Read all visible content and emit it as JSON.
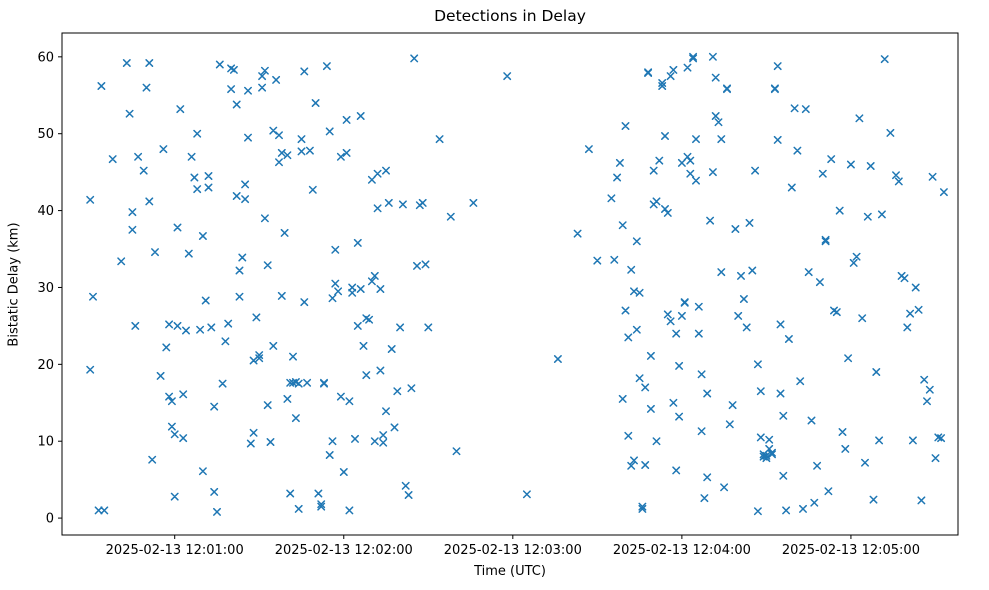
{
  "chart_data": {
    "type": "scatter",
    "title": "Detections in Delay",
    "xlabel": "Time (UTC)",
    "ylabel": "Bistatic Delay (km)",
    "marker": "x",
    "marker_color": "#1f77b4",
    "grid": false,
    "x_unit": "seconds after 2025-02-13 12:00:00 UTC",
    "xlim": [
      20,
      338
    ],
    "ylim": [
      -2.2,
      63.1
    ],
    "x_ticks": [
      {
        "t": 60,
        "label": "2025-02-13 12:01:00"
      },
      {
        "t": 120,
        "label": "2025-02-13 12:02:00"
      },
      {
        "t": 180,
        "label": "2025-02-13 12:03:00"
      },
      {
        "t": 240,
        "label": "2025-02-13 12:04:00"
      },
      {
        "t": 300,
        "label": "2025-02-13 12:05:00"
      }
    ],
    "y_ticks": [
      0,
      10,
      20,
      30,
      40,
      50,
      60
    ],
    "points": [
      [
        30,
        19.3
      ],
      [
        31,
        28.8
      ],
      [
        30,
        41.4
      ],
      [
        33,
        1.0
      ],
      [
        35,
        1.0
      ],
      [
        34,
        56.2
      ],
      [
        38,
        46.7
      ],
      [
        41,
        33.4
      ],
      [
        43,
        59.2
      ],
      [
        44,
        52.6
      ],
      [
        45,
        39.8
      ],
      [
        45,
        37.5
      ],
      [
        46,
        25.0
      ],
      [
        47,
        47.0
      ],
      [
        49,
        45.2
      ],
      [
        50,
        56.0
      ],
      [
        51,
        59.2
      ],
      [
        51,
        41.2
      ],
      [
        52,
        7.6
      ],
      [
        53,
        34.6
      ],
      [
        55,
        18.5
      ],
      [
        56,
        48.0
      ],
      [
        57,
        22.2
      ],
      [
        58,
        15.8
      ],
      [
        58,
        25.2
      ],
      [
        59,
        15.2
      ],
      [
        59,
        11.9
      ],
      [
        60,
        10.9
      ],
      [
        60,
        2.8
      ],
      [
        61,
        25.0
      ],
      [
        61,
        37.8
      ],
      [
        62,
        53.2
      ],
      [
        63,
        10.4
      ],
      [
        63,
        16.1
      ],
      [
        64,
        24.4
      ],
      [
        65,
        34.4
      ],
      [
        66,
        47.0
      ],
      [
        67,
        44.3
      ],
      [
        68,
        42.8
      ],
      [
        68,
        50.0
      ],
      [
        69,
        24.5
      ],
      [
        70,
        6.1
      ],
      [
        70,
        36.7
      ],
      [
        71,
        28.3
      ],
      [
        72,
        43.0
      ],
      [
        72,
        44.5
      ],
      [
        73,
        24.8
      ],
      [
        74,
        14.5
      ],
      [
        74,
        3.4
      ],
      [
        75,
        0.8
      ],
      [
        76,
        59.0
      ],
      [
        77,
        17.5
      ],
      [
        78,
        23.0
      ],
      [
        79,
        25.3
      ],
      [
        80,
        58.5
      ],
      [
        80,
        55.8
      ],
      [
        81,
        58.3
      ],
      [
        82,
        53.8
      ],
      [
        82,
        41.9
      ],
      [
        83,
        32.2
      ],
      [
        83,
        28.8
      ],
      [
        84,
        33.9
      ],
      [
        85,
        43.4
      ],
      [
        85,
        41.5
      ],
      [
        86,
        49.5
      ],
      [
        86,
        55.6
      ],
      [
        87,
        9.7
      ],
      [
        88,
        11.1
      ],
      [
        88,
        20.5
      ],
      [
        89,
        26.1
      ],
      [
        90,
        21.2
      ],
      [
        90,
        20.8
      ],
      [
        91,
        56.0
      ],
      [
        91,
        57.5
      ],
      [
        92,
        58.2
      ],
      [
        92,
        39.0
      ],
      [
        93,
        32.9
      ],
      [
        93,
        14.7
      ],
      [
        94,
        9.9
      ],
      [
        95,
        22.4
      ],
      [
        95,
        50.4
      ],
      [
        96,
        57.0
      ],
      [
        97,
        46.3
      ],
      [
        97,
        49.8
      ],
      [
        98,
        47.5
      ],
      [
        98,
        28.9
      ],
      [
        99,
        37.1
      ],
      [
        100,
        47.2
      ],
      [
        100,
        15.5
      ],
      [
        101,
        17.6
      ],
      [
        101,
        3.2
      ],
      [
        102,
        21.0
      ],
      [
        102,
        17.6
      ],
      [
        103,
        17.7
      ],
      [
        103,
        13.0
      ],
      [
        104,
        1.2
      ],
      [
        104,
        17.5
      ],
      [
        105,
        47.7
      ],
      [
        105,
        49.3
      ],
      [
        106,
        58.1
      ],
      [
        106,
        28.1
      ],
      [
        107,
        17.6
      ],
      [
        108,
        47.8
      ],
      [
        109,
        42.7
      ],
      [
        110,
        54.0
      ],
      [
        111,
        3.2
      ],
      [
        112,
        1.8
      ],
      [
        112,
        1.5
      ],
      [
        113,
        17.5
      ],
      [
        113,
        17.6
      ],
      [
        114,
        58.8
      ],
      [
        115,
        50.3
      ],
      [
        115,
        8.2
      ],
      [
        116,
        10.0
      ],
      [
        116,
        28.6
      ],
      [
        117,
        30.5
      ],
      [
        117,
        34.9
      ],
      [
        118,
        29.5
      ],
      [
        119,
        47.0
      ],
      [
        119,
        15.8
      ],
      [
        120,
        6.0
      ],
      [
        121,
        47.5
      ],
      [
        121,
        51.8
      ],
      [
        122,
        15.2
      ],
      [
        122,
        1.0
      ],
      [
        123,
        30.0
      ],
      [
        123,
        29.3
      ],
      [
        124,
        10.3
      ],
      [
        125,
        25.0
      ],
      [
        125,
        35.8
      ],
      [
        126,
        52.3
      ],
      [
        126,
        29.8
      ],
      [
        127,
        22.4
      ],
      [
        128,
        18.6
      ],
      [
        128,
        26.0
      ],
      [
        129,
        25.8
      ],
      [
        130,
        44.0
      ],
      [
        130,
        30.8
      ],
      [
        131,
        31.5
      ],
      [
        131,
        10.0
      ],
      [
        132,
        44.8
      ],
      [
        132,
        40.3
      ],
      [
        133,
        29.8
      ],
      [
        133,
        19.2
      ],
      [
        134,
        9.8
      ],
      [
        134,
        10.8
      ],
      [
        135,
        45.2
      ],
      [
        135,
        13.9
      ],
      [
        136,
        41.0
      ],
      [
        137,
        22.0
      ],
      [
        138,
        11.8
      ],
      [
        139,
        16.5
      ],
      [
        140,
        24.8
      ],
      [
        141,
        40.8
      ],
      [
        142,
        4.2
      ],
      [
        143,
        3.0
      ],
      [
        144,
        16.9
      ],
      [
        145,
        59.8
      ],
      [
        146,
        32.8
      ],
      [
        147,
        40.7
      ],
      [
        148,
        41.0
      ],
      [
        149,
        33.0
      ],
      [
        150,
        24.8
      ],
      [
        154,
        49.3
      ],
      [
        158,
        39.2
      ],
      [
        160,
        8.7
      ],
      [
        166,
        41.0
      ],
      [
        178,
        57.5
      ],
      [
        185,
        3.1
      ],
      [
        196,
        20.7
      ],
      [
        203,
        37.0
      ],
      [
        207,
        48.0
      ],
      [
        210,
        33.5
      ],
      [
        215,
        41.6
      ],
      [
        216,
        33.6
      ],
      [
        217,
        44.3
      ],
      [
        218,
        46.2
      ],
      [
        219,
        38.1
      ],
      [
        219,
        15.5
      ],
      [
        220,
        27.0
      ],
      [
        220,
        51.0
      ],
      [
        221,
        10.7
      ],
      [
        221,
        23.5
      ],
      [
        222,
        32.3
      ],
      [
        222,
        6.8
      ],
      [
        223,
        29.5
      ],
      [
        223,
        7.5
      ],
      [
        224,
        36.0
      ],
      [
        224,
        24.5
      ],
      [
        225,
        29.3
      ],
      [
        225,
        18.2
      ],
      [
        226,
        1.5
      ],
      [
        226,
        1.2
      ],
      [
        227,
        17.0
      ],
      [
        227,
        6.9
      ],
      [
        228,
        58.0
      ],
      [
        228,
        57.9
      ],
      [
        229,
        21.1
      ],
      [
        229,
        14.2
      ],
      [
        230,
        45.2
      ],
      [
        230,
        40.8
      ],
      [
        231,
        41.2
      ],
      [
        231,
        10.0
      ],
      [
        232,
        46.5
      ],
      [
        233,
        56.6
      ],
      [
        233,
        56.2
      ],
      [
        234,
        49.7
      ],
      [
        234,
        40.2
      ],
      [
        235,
        39.7
      ],
      [
        235,
        26.5
      ],
      [
        236,
        57.5
      ],
      [
        236,
        25.6
      ],
      [
        237,
        58.3
      ],
      [
        237,
        15.0
      ],
      [
        238,
        24.0
      ],
      [
        238,
        6.2
      ],
      [
        239,
        19.8
      ],
      [
        239,
        13.2
      ],
      [
        240,
        26.3
      ],
      [
        240,
        46.2
      ],
      [
        241,
        28.0
      ],
      [
        241,
        28.1
      ],
      [
        242,
        58.6
      ],
      [
        242,
        47.0
      ],
      [
        243,
        46.5
      ],
      [
        243,
        44.8
      ],
      [
        244,
        59.8
      ],
      [
        244,
        60.0
      ],
      [
        245,
        49.3
      ],
      [
        245,
        43.9
      ],
      [
        246,
        27.5
      ],
      [
        246,
        24.0
      ],
      [
        247,
        18.7
      ],
      [
        247,
        11.3
      ],
      [
        248,
        2.6
      ],
      [
        249,
        5.3
      ],
      [
        249,
        16.2
      ],
      [
        250,
        38.7
      ],
      [
        251,
        45.0
      ],
      [
        251,
        60.0
      ],
      [
        252,
        57.3
      ],
      [
        252,
        52.3
      ],
      [
        253,
        51.5
      ],
      [
        254,
        49.3
      ],
      [
        254,
        32.0
      ],
      [
        255,
        4.0
      ],
      [
        256,
        55.9
      ],
      [
        256,
        55.8
      ],
      [
        257,
        12.2
      ],
      [
        258,
        14.7
      ],
      [
        259,
        37.6
      ],
      [
        260,
        26.3
      ],
      [
        261,
        31.5
      ],
      [
        262,
        28.5
      ],
      [
        263,
        24.8
      ],
      [
        264,
        38.4
      ],
      [
        265,
        32.2
      ],
      [
        266,
        45.2
      ],
      [
        267,
        0.9
      ],
      [
        267,
        20.0
      ],
      [
        268,
        16.5
      ],
      [
        268,
        10.5
      ],
      [
        269,
        8.0
      ],
      [
        269,
        8.3
      ],
      [
        270,
        8.1
      ],
      [
        270,
        7.8
      ],
      [
        271,
        10.2
      ],
      [
        271,
        9.0
      ],
      [
        272,
        8.3
      ],
      [
        272,
        8.5
      ],
      [
        273,
        55.8
      ],
      [
        273,
        55.9
      ],
      [
        274,
        58.8
      ],
      [
        274,
        49.2
      ],
      [
        275,
        25.2
      ],
      [
        275,
        16.2
      ],
      [
        276,
        13.3
      ],
      [
        276,
        5.5
      ],
      [
        277,
        1.0
      ],
      [
        278,
        23.3
      ],
      [
        279,
        43.0
      ],
      [
        280,
        53.3
      ],
      [
        281,
        47.8
      ],
      [
        282,
        17.8
      ],
      [
        283,
        1.2
      ],
      [
        284,
        53.2
      ],
      [
        285,
        32.0
      ],
      [
        286,
        12.7
      ],
      [
        287,
        2.0
      ],
      [
        288,
        6.8
      ],
      [
        289,
        30.7
      ],
      [
        290,
        44.8
      ],
      [
        291,
        36.2
      ],
      [
        291,
        36.0
      ],
      [
        292,
        3.5
      ],
      [
        293,
        46.7
      ],
      [
        294,
        27.0
      ],
      [
        295,
        26.8
      ],
      [
        296,
        40.0
      ],
      [
        297,
        11.2
      ],
      [
        298,
        9.0
      ],
      [
        299,
        20.8
      ],
      [
        300,
        46.0
      ],
      [
        301,
        33.2
      ],
      [
        302,
        34.0
      ],
      [
        303,
        52.0
      ],
      [
        304,
        26.0
      ],
      [
        305,
        7.2
      ],
      [
        306,
        39.2
      ],
      [
        307,
        45.8
      ],
      [
        308,
        2.4
      ],
      [
        309,
        19.0
      ],
      [
        310,
        10.1
      ],
      [
        311,
        39.5
      ],
      [
        312,
        59.7
      ],
      [
        314,
        50.1
      ],
      [
        316,
        44.6
      ],
      [
        317,
        43.8
      ],
      [
        318,
        31.5
      ],
      [
        319,
        31.2
      ],
      [
        320,
        24.8
      ],
      [
        321,
        26.6
      ],
      [
        322,
        10.1
      ],
      [
        323,
        30.0
      ],
      [
        324,
        27.1
      ],
      [
        325,
        2.3
      ],
      [
        326,
        18.0
      ],
      [
        327,
        15.2
      ],
      [
        328,
        16.7
      ],
      [
        329,
        44.4
      ],
      [
        330,
        7.8
      ],
      [
        331,
        10.5
      ],
      [
        332,
        10.4
      ],
      [
        333,
        42.4
      ]
    ]
  }
}
